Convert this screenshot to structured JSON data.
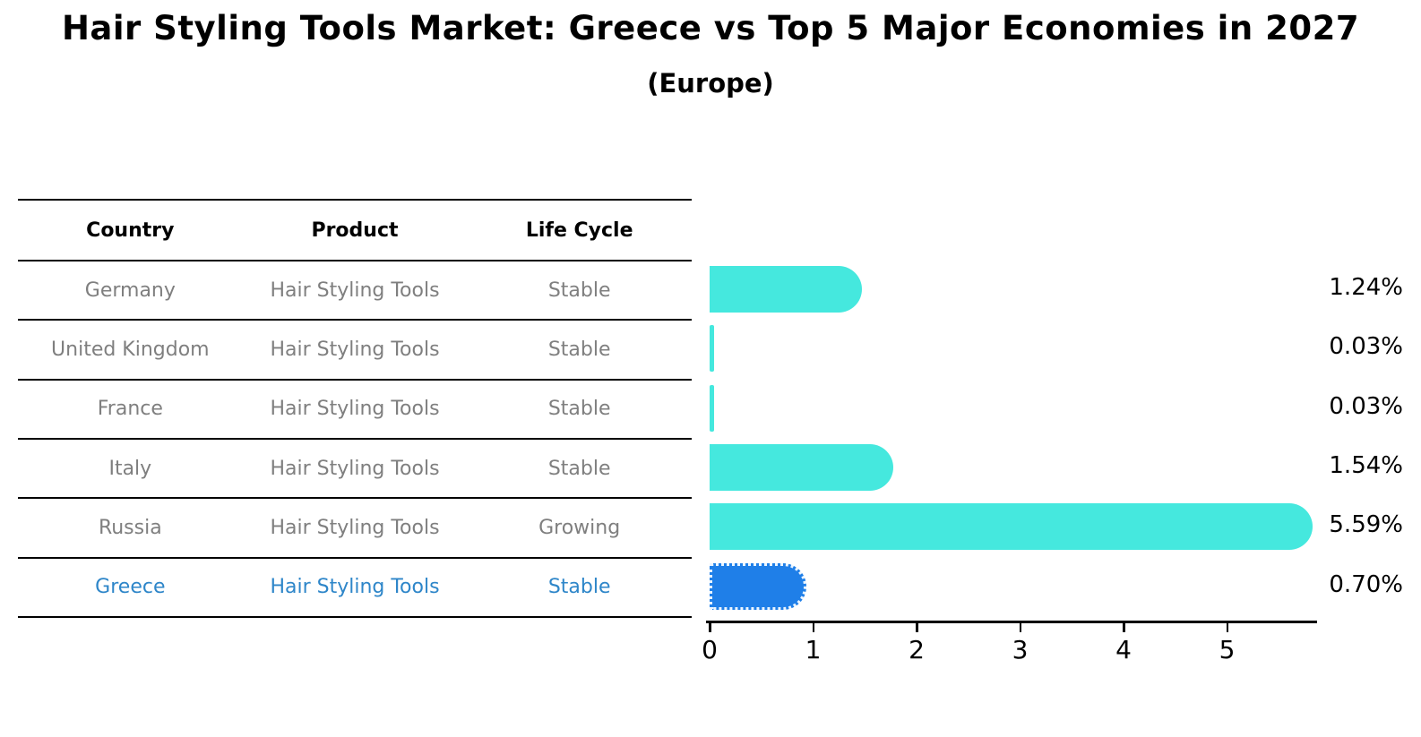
{
  "title": "Hair Styling Tools Market: Greece vs Top 5 Major Economies in 2027",
  "subtitle": "(Europe)",
  "table": {
    "columns": [
      "Country",
      "Product",
      "Life Cycle"
    ],
    "rows": [
      {
        "country": "Germany",
        "product": "Hair Styling Tools",
        "life_cycle": "Stable",
        "value": 1.24,
        "label": "1.24%",
        "highlighted": false
      },
      {
        "country": "United Kingdom",
        "product": "Hair Styling Tools",
        "life_cycle": "Stable",
        "value": 0.03,
        "label": "0.03%",
        "highlighted": false
      },
      {
        "country": "France",
        "product": "Hair Styling Tools",
        "life_cycle": "Stable",
        "value": 0.03,
        "label": "0.03%",
        "highlighted": false
      },
      {
        "country": "Italy",
        "product": "Hair Styling Tools",
        "life_cycle": "Stable",
        "value": 1.54,
        "label": "1.54%",
        "highlighted": false
      },
      {
        "country": "Russia",
        "product": "Hair Styling Tools",
        "life_cycle": "Growing",
        "value": 5.59,
        "label": "5.59%",
        "highlighted": false
      },
      {
        "country": "Greece",
        "product": "Hair Styling Tools",
        "life_cycle": "Stable",
        "value": 0.7,
        "label": "0.70%",
        "highlighted": true
      }
    ]
  },
  "chart_data": {
    "type": "bar",
    "orientation": "horizontal",
    "title": "Hair Styling Tools Market: Greece vs Top 5 Major Economies in 2027 (Europe)",
    "categories": [
      "Germany",
      "United Kingdom",
      "France",
      "Italy",
      "Russia",
      "Greece"
    ],
    "values": [
      1.24,
      0.03,
      0.03,
      1.54,
      5.59,
      0.7
    ],
    "data_labels": [
      "1.24%",
      "0.03%",
      "0.03%",
      "1.54%",
      "5.59%",
      "0.70%"
    ],
    "xlabel": "",
    "ylabel": "",
    "xticks": [
      0,
      1,
      2,
      3,
      4,
      5
    ],
    "xlim": [
      0,
      5.9
    ],
    "grid": false,
    "legend": false,
    "bar_color": "#45e8de",
    "highlight_color": "#1f7fe8",
    "highlight_category": "Greece"
  },
  "colors": {
    "bar_default": "#45e8de",
    "bar_highlight": "#1f7fe8",
    "highlight_text": "#2e86c9",
    "table_text": "#7f7f7f",
    "axis": "#000000"
  }
}
